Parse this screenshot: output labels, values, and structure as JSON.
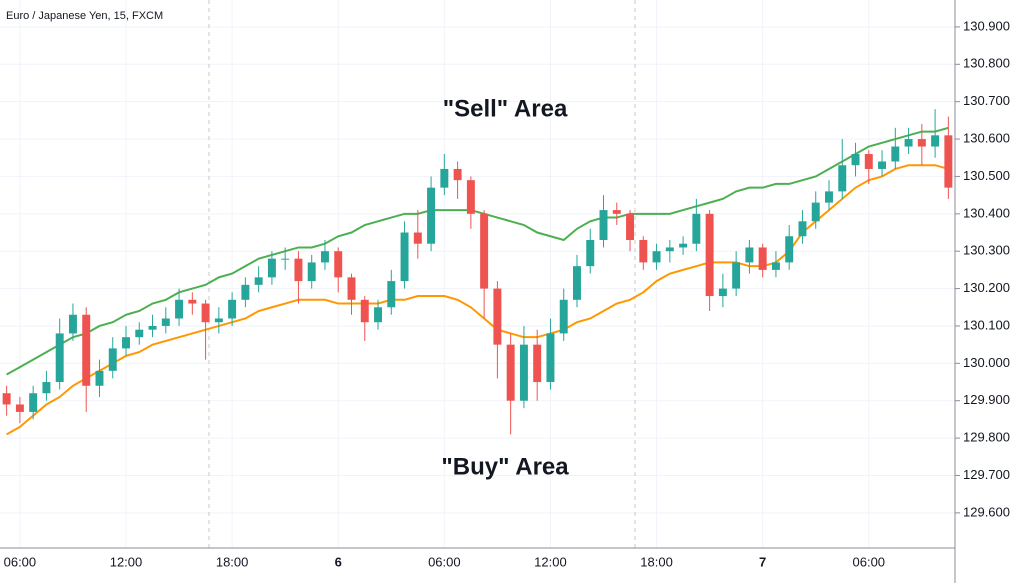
{
  "chart_data": {
    "type": "candlestick",
    "title": "Euro / Japanese Yen, 15, FXCM",
    "annotations": [
      {
        "text": "\"Sell\" Area",
        "color": "#4caf50"
      },
      {
        "text": "\"Buy\" Area",
        "color": "#ff9800"
      }
    ],
    "categories": [
      null,
      "06:00",
      null,
      null,
      null,
      null,
      null,
      null,
      null,
      "12:00",
      null,
      null,
      null,
      null,
      null,
      null,
      null,
      "18:00",
      null,
      null,
      null,
      null,
      null,
      null,
      null,
      "6",
      null,
      null,
      null,
      null,
      null,
      null,
      null,
      "06:00",
      null,
      null,
      null,
      null,
      null,
      null,
      null,
      "12:00",
      null,
      null,
      null,
      null,
      null,
      null,
      null,
      "18:00",
      null,
      null,
      null,
      null,
      null,
      null,
      null,
      "7",
      null,
      null,
      null,
      null,
      null,
      null,
      null,
      "06:00",
      null,
      null,
      null,
      null,
      null,
      null
    ],
    "open": [
      129.92,
      129.89,
      129.87,
      129.92,
      129.95,
      130.08,
      130.13,
      129.94,
      129.98,
      130.04,
      130.07,
      130.09,
      130.1,
      130.12,
      130.17,
      130.16,
      130.11,
      130.12,
      130.17,
      130.21,
      130.23,
      130.28,
      130.28,
      130.22,
      130.27,
      130.3,
      130.23,
      130.17,
      130.11,
      130.15,
      130.22,
      130.35,
      130.32,
      130.47,
      130.52,
      130.49,
      130.4,
      130.2,
      130.05,
      129.9,
      130.05,
      129.95,
      130.08,
      130.17,
      130.26,
      130.33,
      130.41,
      130.4,
      130.33,
      130.27,
      130.3,
      130.31,
      130.32,
      130.4,
      130.18,
      130.2,
      130.27,
      130.31,
      130.25,
      130.27,
      130.34,
      130.38,
      130.43,
      130.46,
      130.53,
      130.56,
      130.52,
      130.54,
      130.58,
      130.6,
      130.58,
      130.61
    ],
    "high": [
      129.94,
      129.91,
      129.94,
      129.98,
      130.12,
      130.16,
      130.15,
      130.01,
      130.07,
      130.1,
      130.11,
      130.13,
      130.15,
      130.2,
      130.19,
      130.17,
      130.15,
      130.19,
      130.23,
      130.26,
      130.3,
      130.31,
      130.3,
      130.29,
      130.33,
      130.31,
      130.24,
      130.18,
      130.17,
      130.25,
      130.38,
      130.41,
      130.5,
      130.56,
      130.54,
      130.5,
      130.41,
      130.22,
      130.08,
      130.1,
      130.09,
      130.12,
      130.2,
      130.29,
      130.36,
      130.45,
      130.43,
      130.41,
      130.34,
      130.32,
      130.33,
      130.34,
      130.44,
      130.41,
      130.24,
      130.3,
      130.33,
      130.32,
      130.3,
      130.37,
      130.41,
      130.46,
      130.49,
      130.6,
      130.59,
      130.57,
      130.57,
      130.63,
      130.63,
      130.64,
      130.68,
      130.66
    ],
    "low": [
      129.86,
      129.84,
      129.85,
      129.9,
      129.93,
      130.06,
      129.87,
      129.91,
      129.96,
      130.02,
      130.05,
      130.07,
      130.08,
      130.1,
      130.13,
      130.01,
      130.08,
      130.1,
      130.15,
      130.19,
      130.21,
      130.25,
      130.16,
      130.2,
      130.25,
      130.19,
      130.13,
      130.06,
      130.09,
      130.13,
      130.2,
      130.28,
      130.3,
      130.45,
      130.44,
      130.36,
      130.12,
      129.96,
      129.81,
      129.88,
      129.9,
      129.93,
      130.06,
      130.15,
      130.24,
      130.31,
      130.37,
      130.3,
      130.25,
      130.25,
      130.27,
      130.29,
      130.3,
      130.14,
      130.15,
      130.18,
      130.24,
      130.23,
      130.23,
      130.25,
      130.32,
      130.36,
      130.41,
      130.44,
      130.5,
      130.48,
      130.5,
      130.52,
      130.56,
      130.53,
      130.55,
      130.44
    ],
    "close": [
      129.89,
      129.87,
      129.92,
      129.95,
      130.08,
      130.13,
      129.94,
      129.98,
      130.04,
      130.07,
      130.09,
      130.1,
      130.12,
      130.17,
      130.16,
      130.11,
      130.12,
      130.17,
      130.21,
      130.23,
      130.28,
      130.28,
      130.22,
      130.27,
      130.3,
      130.23,
      130.17,
      130.11,
      130.15,
      130.22,
      130.35,
      130.32,
      130.47,
      130.52,
      130.49,
      130.4,
      130.2,
      130.05,
      129.9,
      130.05,
      129.95,
      130.08,
      130.17,
      130.26,
      130.33,
      130.41,
      130.4,
      130.33,
      130.27,
      130.3,
      130.31,
      130.32,
      130.4,
      130.18,
      130.2,
      130.27,
      130.31,
      130.25,
      130.27,
      130.34,
      130.38,
      130.43,
      130.46,
      130.53,
      130.56,
      130.52,
      130.54,
      130.58,
      130.6,
      130.58,
      130.61,
      130.47
    ],
    "up_color": "#26a69a",
    "down_color": "#ef5350",
    "upper_band": {
      "color": "#4caf50",
      "values": [
        129.97,
        129.99,
        130.01,
        130.03,
        130.05,
        130.07,
        130.08,
        130.1,
        130.11,
        130.13,
        130.14,
        130.16,
        130.17,
        130.19,
        130.2,
        130.21,
        130.23,
        130.24,
        130.26,
        130.28,
        130.29,
        130.3,
        130.31,
        130.31,
        130.32,
        130.34,
        130.35,
        130.37,
        130.38,
        130.39,
        130.4,
        130.4,
        130.41,
        130.41,
        130.41,
        130.41,
        130.4,
        130.39,
        130.38,
        130.37,
        130.35,
        130.34,
        130.33,
        130.36,
        130.38,
        130.39,
        130.39,
        130.4,
        130.4,
        130.4,
        130.4,
        130.41,
        130.42,
        130.43,
        130.44,
        130.46,
        130.47,
        130.47,
        130.48,
        130.48,
        130.49,
        130.5,
        130.52,
        130.54,
        130.56,
        130.58,
        130.59,
        130.6,
        130.61,
        130.62,
        130.62,
        130.63
      ]
    },
    "lower_band": {
      "color": "#ff9800",
      "values": [
        129.81,
        129.83,
        129.86,
        129.89,
        129.91,
        129.94,
        129.96,
        129.98,
        130.0,
        130.02,
        130.03,
        130.05,
        130.06,
        130.07,
        130.08,
        130.09,
        130.1,
        130.11,
        130.12,
        130.14,
        130.15,
        130.16,
        130.17,
        130.17,
        130.17,
        130.16,
        130.16,
        130.16,
        130.16,
        130.17,
        130.17,
        130.18,
        130.18,
        130.18,
        130.17,
        130.15,
        130.12,
        130.09,
        130.08,
        130.07,
        130.07,
        130.08,
        130.09,
        130.11,
        130.12,
        130.14,
        130.16,
        130.17,
        130.19,
        130.22,
        130.24,
        130.25,
        130.26,
        130.27,
        130.27,
        130.27,
        130.26,
        130.26,
        130.27,
        130.3,
        130.35,
        130.38,
        130.41,
        130.44,
        130.47,
        130.49,
        130.5,
        130.52,
        130.53,
        130.53,
        130.53,
        130.52
      ]
    },
    "ylim": [
      129.506,
      130.972
    ],
    "yticks": [
      {
        "value": 129.6,
        "label": "129.600"
      },
      {
        "value": 129.7,
        "label": "129.700"
      },
      {
        "value": 129.8,
        "label": "129.800"
      },
      {
        "value": 129.9,
        "label": "129.900"
      },
      {
        "value": 130.0,
        "label": "130.000"
      },
      {
        "value": 130.1,
        "label": "130.100"
      },
      {
        "value": 130.2,
        "label": "130.200"
      },
      {
        "value": 130.3,
        "label": "130.300"
      },
      {
        "value": 130.4,
        "label": "130.400"
      },
      {
        "value": 130.5,
        "label": "130.500"
      },
      {
        "value": 130.6,
        "label": "130.600"
      },
      {
        "value": 130.7,
        "label": "130.700"
      },
      {
        "value": 130.8,
        "label": "130.800"
      },
      {
        "value": 130.9,
        "label": "130.900"
      }
    ],
    "grid": true
  }
}
